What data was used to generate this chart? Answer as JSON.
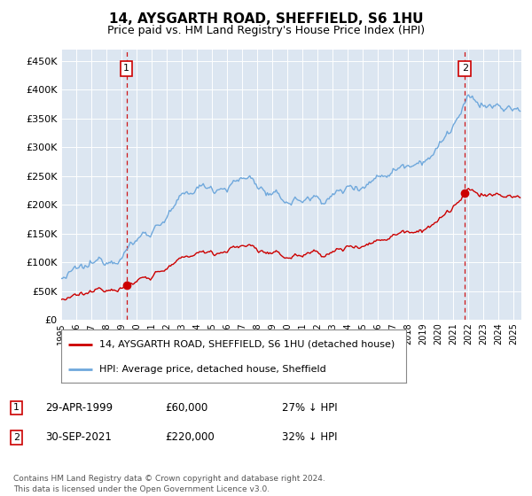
{
  "title": "14, AYSGARTH ROAD, SHEFFIELD, S6 1HU",
  "subtitle": "Price paid vs. HM Land Registry's House Price Index (HPI)",
  "legend_line1": "14, AYSGARTH ROAD, SHEFFIELD, S6 1HU (detached house)",
  "legend_line2": "HPI: Average price, detached house, Sheffield",
  "annotation1_date": "29-APR-1999",
  "annotation1_price": "£60,000",
  "annotation1_hpi": "27% ↓ HPI",
  "annotation2_date": "30-SEP-2021",
  "annotation2_price": "£220,000",
  "annotation2_hpi": "32% ↓ HPI",
  "footer": "Contains HM Land Registry data © Crown copyright and database right 2024.\nThis data is licensed under the Open Government Licence v3.0.",
  "hpi_color": "#6fa8dc",
  "price_color": "#cc0000",
  "dashed_color": "#cc0000",
  "background_color": "#dce6f1",
  "ylim": [
    0,
    470000
  ],
  "yticks": [
    0,
    50000,
    100000,
    150000,
    200000,
    250000,
    300000,
    350000,
    400000,
    450000
  ],
  "sale1_year": 1999.32,
  "sale1_price": 60000,
  "sale2_year": 2021.75,
  "sale2_price": 220000,
  "xmin": 1995,
  "xmax": 2025.5
}
